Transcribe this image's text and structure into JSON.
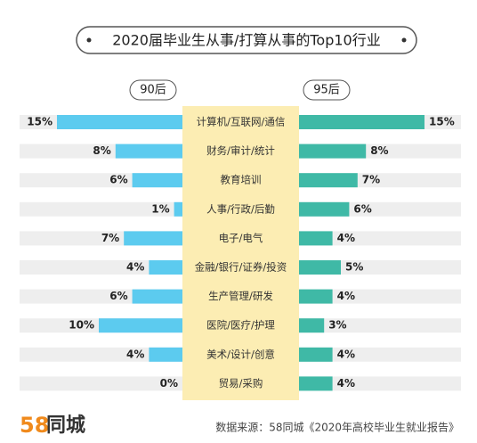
{
  "chart_data": {
    "type": "butterfly",
    "title": "2020届毕业生从事/打算从事的Top10行业",
    "categories": [
      "计算机/互联网/通信",
      "财务/审计/统计",
      "教育培训",
      "人事/行政/后勤",
      "电子/电气",
      "金融/银行/证券/投资",
      "生产管理/研发",
      "医院/医疗/护理",
      "美术/设计/创意",
      "贸易/采购"
    ],
    "series": [
      {
        "name": "90后",
        "color": "#5ccbef",
        "values": [
          15,
          8,
          6,
          1,
          7,
          4,
          6,
          10,
          4,
          0
        ],
        "value_labels": [
          "15%",
          "8%",
          "6%",
          "1%",
          "7%",
          "4%",
          "6%",
          "10%",
          "4%",
          "0%"
        ]
      },
      {
        "name": "95后",
        "color": "#3fb9a6",
        "values": [
          15,
          8,
          7,
          6,
          4,
          5,
          4,
          3,
          4,
          4
        ],
        "value_labels": [
          "15%",
          "8%",
          "7%",
          "6%",
          "4%",
          "5%",
          "4%",
          "3%",
          "4%",
          "4%"
        ]
      }
    ],
    "center_color": "#fcedb3",
    "logo": {
      "number": "58",
      "text": "同城"
    },
    "source": "数据来源：58同城《2020年高校毕业生就业报告》"
  }
}
